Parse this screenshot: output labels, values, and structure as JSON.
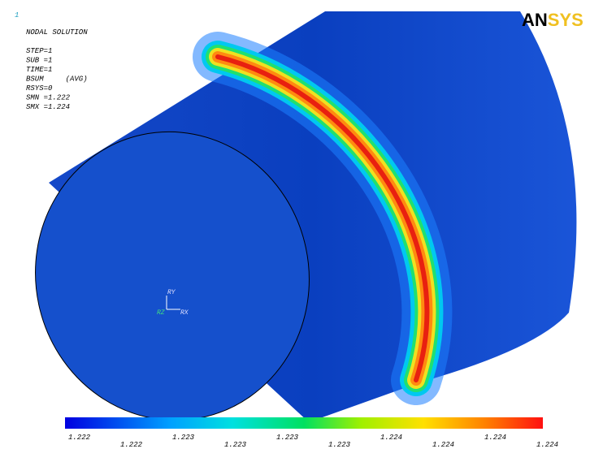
{
  "header": {
    "window_number": "1",
    "title": "NODAL SOLUTION",
    "params": [
      "STEP=1",
      "SUB =1",
      "TIME=1",
      "BSUM     (AVG)",
      "RSYS=0",
      "SMN =1.222",
      "SMX =1.224"
    ]
  },
  "logo": {
    "dark": "AN",
    "light": "SYS"
  },
  "triad": {
    "y": "RY",
    "x": "RX",
    "z": "RZ"
  },
  "legend": {
    "labels": [
      "1.222",
      "1.222",
      "1.223",
      "1.223",
      "1.223",
      "1.223",
      "1.224",
      "1.224",
      "1.224",
      "1.224"
    ]
  }
}
